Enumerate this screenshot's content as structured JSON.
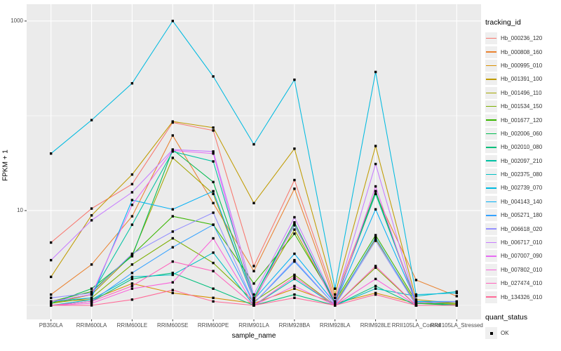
{
  "figure": {
    "y_axis_title": "FPKM + 1",
    "x_axis_title": "sample_name"
  },
  "legend": {
    "tracking_title": "tracking_id",
    "quant_title": "quant_status",
    "quant_ok_label": "OK"
  },
  "colors": {
    "panel_bg": "#EBEBEB",
    "grid": "#FFFFFF",
    "tick_text": "#4D4D4D",
    "axis_text": "#000000",
    "marker": "#000000",
    "legend_key_bg": "#EFEFEF"
  },
  "chart_data": {
    "type": "line",
    "title": "",
    "xlabel": "sample_name",
    "ylabel": "FPKM + 1",
    "x_scale": "categorical",
    "y_scale": "log10",
    "ylim": [
      0.711,
      1504
    ],
    "grid": "white major/minor gridlines on gray panel",
    "legend_position": "right",
    "marker": "black-square",
    "quant_status": "OK",
    "y_ticks": [
      {
        "value": 10,
        "label": "10"
      },
      {
        "value": 1000,
        "label": "1000"
      }
    ],
    "y_minor_ticks": [
      1,
      100
    ],
    "categories": [
      "PB350LA",
      "RRIM600LA",
      "RRIM600LE",
      "RRIM600SE",
      "RRIM600PE",
      "RRIM901LA",
      "RRIM928BA",
      "RRIM928LA",
      "RRIM928LE",
      "RRII105LA_Control",
      "RRII105LA_Stressed"
    ],
    "series": [
      {
        "name": "Hb_000236_120",
        "color": "#F8766D",
        "values": [
          4.6,
          10.5,
          19,
          85,
          70,
          2.6,
          21,
          1.2,
          16,
          1.1,
          1.05
        ]
      },
      {
        "name": "Hb_000808_160",
        "color": "#EA8331",
        "values": [
          1.3,
          2.7,
          8.7,
          62,
          12,
          2.3,
          17,
          1.1,
          15,
          1.85,
          1.25
        ]
      },
      {
        "name": "Hb_000995_010",
        "color": "#D89000",
        "values": [
          1.1,
          1.15,
          1.7,
          1.35,
          1.2,
          1.05,
          1.5,
          1.05,
          1.35,
          1.05,
          1.02
        ]
      },
      {
        "name": "Hb_001391_100",
        "color": "#C09B00",
        "values": [
          2.0,
          8.9,
          24,
          87,
          75,
          12,
          45,
          1.3,
          48,
          1.15,
          1.05
        ]
      },
      {
        "name": "Hb_001496_110",
        "color": "#A3A500",
        "values": [
          1.05,
          1.3,
          3.4,
          36,
          15,
          1.15,
          6.3,
          1.05,
          5.0,
          1.05,
          1.05
        ]
      },
      {
        "name": "Hb_001534_150",
        "color": "#7CAE00",
        "values": [
          1.05,
          1.2,
          2.7,
          5.1,
          2.8,
          1.1,
          2.1,
          1.0,
          2.5,
          1.0,
          1.0
        ]
      },
      {
        "name": "Hb_001677_120",
        "color": "#39B600",
        "values": [
          1.1,
          1.4,
          3.4,
          8.7,
          7.1,
          1.7,
          5.7,
          1.1,
          5.5,
          1.1,
          1.05
        ]
      },
      {
        "name": "Hb_002006_060",
        "color": "#00BB4E",
        "values": [
          1.05,
          1.5,
          3.3,
          44,
          20,
          1.2,
          7.5,
          1.05,
          16,
          1.05,
          1.0
        ]
      },
      {
        "name": "Hb_002010_080",
        "color": "#00BF7D",
        "values": [
          1.0,
          1.1,
          1.9,
          2.2,
          1.5,
          1.0,
          1.3,
          1.0,
          1.6,
          1.0,
          1.0
        ]
      },
      {
        "name": "Hb_002097_210",
        "color": "#00C1A3",
        "values": [
          1.1,
          1.3,
          7.1,
          42,
          33,
          1.2,
          7.0,
          1.1,
          15,
          1.1,
          1.0
        ]
      },
      {
        "name": "Hb_002375_080",
        "color": "#00BFC4",
        "values": [
          1.0,
          1.15,
          2.0,
          2.1,
          3.6,
          1.0,
          1.9,
          1.0,
          1.5,
          1.25,
          1.4
        ]
      },
      {
        "name": "Hb_002739_070",
        "color": "#00BAE0",
        "values": [
          40,
          90,
          220,
          1000,
          260,
          50,
          240,
          1.5,
          290,
          1.3,
          1.35
        ]
      },
      {
        "name": "Hb_004143_140",
        "color": "#00B0F6",
        "values": [
          1.1,
          1.2,
          12.9,
          10.3,
          16,
          1.15,
          3.5,
          1.05,
          10.3,
          1.1,
          1.1
        ]
      },
      {
        "name": "Hb_005271_180",
        "color": "#35A2FF",
        "values": [
          1.0,
          1.1,
          2.2,
          4.1,
          7.1,
          1.05,
          2.9,
          1.0,
          5.2,
          1.0,
          1.0
        ]
      },
      {
        "name": "Hb_006618_020",
        "color": "#9590FF",
        "values": [
          1.2,
          1.35,
          3.5,
          6.0,
          9.5,
          1.05,
          3.0,
          1.0,
          4.8,
          1.0,
          1.0
        ]
      },
      {
        "name": "Hb_006717_010",
        "color": "#C77CFF",
        "values": [
          3.0,
          7.9,
          15.6,
          44,
          42,
          1.3,
          8.5,
          1.1,
          31,
          1.07,
          1.09
        ]
      },
      {
        "name": "Hb_007007_090",
        "color": "#E76BF3",
        "values": [
          1.1,
          1.3,
          11.5,
          43,
          40,
          1.1,
          7.2,
          1.0,
          18,
          1.0,
          1.0
        ]
      },
      {
        "name": "Hb_007802_010",
        "color": "#FA62DB",
        "values": [
          1.0,
          1.05,
          1.5,
          1.75,
          5.1,
          1.0,
          1.6,
          1.0,
          1.9,
          1.0,
          1.0
        ]
      },
      {
        "name": "Hb_027474_010",
        "color": "#FF62BC",
        "values": [
          1.0,
          1.1,
          1.6,
          2.9,
          2.3,
          1.0,
          2.0,
          1.0,
          2.6,
          1.0,
          1.0
        ]
      },
      {
        "name": "Hb_134326_010",
        "color": "#FF6A98",
        "values": [
          1.0,
          1.0,
          1.15,
          1.45,
          1.1,
          1.0,
          1.2,
          1.0,
          1.3,
          1.0,
          1.0
        ]
      }
    ]
  }
}
